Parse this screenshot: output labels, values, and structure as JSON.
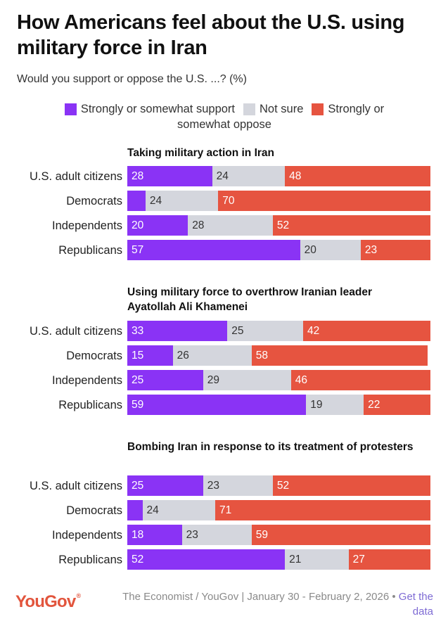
{
  "header": {
    "title": "How Americans feel about the U.S. using military force in Iran",
    "subtitle": "Would you support or oppose the U.S. ...? (%)"
  },
  "legend": {
    "support": "Strongly or somewhat support",
    "not_sure": "Not sure",
    "oppose_line1": "Strongly or",
    "oppose_line2": "somewhat oppose"
  },
  "colors": {
    "support": "#8a33f5",
    "not_sure": "#d4d6dd",
    "oppose": "#e65440"
  },
  "chart_data": [
    {
      "type": "bar",
      "stacked": true,
      "orientation": "horizontal",
      "title": "Taking military action in Iran",
      "categories": [
        "U.S. adult citizens",
        "Democrats",
        "Independents",
        "Republicans"
      ],
      "series": [
        {
          "name": "Strongly or somewhat support",
          "values": [
            28,
            6,
            20,
            57
          ]
        },
        {
          "name": "Not sure",
          "values": [
            24,
            24,
            28,
            20
          ]
        },
        {
          "name": "Strongly or somewhat oppose",
          "values": [
            48,
            70,
            52,
            23
          ]
        }
      ],
      "labels": [
        [
          "28",
          "24",
          "48"
        ],
        [
          "",
          "24",
          "70"
        ],
        [
          "20",
          "28",
          "52"
        ],
        [
          "57",
          "20",
          "23"
        ]
      ],
      "xlim": [
        0,
        100
      ]
    },
    {
      "type": "bar",
      "stacked": true,
      "orientation": "horizontal",
      "title": "Using military force to overthrow Iranian leader Ayatollah Ali Khamenei",
      "categories": [
        "U.S. adult citizens",
        "Democrats",
        "Independents",
        "Republicans"
      ],
      "series": [
        {
          "name": "Strongly or somewhat support",
          "values": [
            33,
            15,
            25,
            59
          ]
        },
        {
          "name": "Not sure",
          "values": [
            25,
            26,
            29,
            19
          ]
        },
        {
          "name": "Strongly or somewhat oppose",
          "values": [
            42,
            58,
            46,
            22
          ]
        }
      ],
      "labels": [
        [
          "33",
          "25",
          "42"
        ],
        [
          "15",
          "26",
          "58"
        ],
        [
          "25",
          "29",
          "46"
        ],
        [
          "59",
          "19",
          "22"
        ]
      ],
      "xlim": [
        0,
        100
      ]
    },
    {
      "type": "bar",
      "stacked": true,
      "orientation": "horizontal",
      "title": "Bombing Iran in response to its treatment of protesters",
      "categories": [
        "U.S. adult citizens",
        "Democrats",
        "Independents",
        "Republicans"
      ],
      "series": [
        {
          "name": "Strongly or somewhat support",
          "values": [
            25,
            5,
            18,
            52
          ]
        },
        {
          "name": "Not sure",
          "values": [
            23,
            24,
            23,
            21
          ]
        },
        {
          "name": "Strongly or somewhat oppose",
          "values": [
            52,
            71,
            59,
            27
          ]
        }
      ],
      "labels": [
        [
          "25",
          "23",
          "52"
        ],
        [
          "",
          "24",
          "71"
        ],
        [
          "18",
          "23",
          "59"
        ],
        [
          "52",
          "21",
          "27"
        ]
      ],
      "xlim": [
        0,
        100
      ]
    }
  ],
  "footer": {
    "logo": "YouGov",
    "source": "The Economist / YouGov | January 30 - February 2, 2026 • ",
    "link": "Get the data"
  }
}
